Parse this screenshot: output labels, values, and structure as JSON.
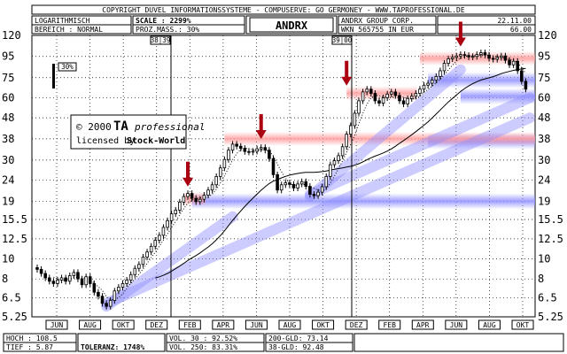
{
  "header": {
    "copyright": "COPYRIGHT  DUVEL INFORMATIONSSYSTEME - COMPUSERVE: GO GERMONEY - WWW.TAPROFESSIONAL.DE",
    "scale_type": "LOGARITHMISCH",
    "range": "BEREICH : NORMAL",
    "scale": "SCALE : 2299%",
    "proz": "PROZ.MASS.: 30%",
    "ticker": "ANDRX",
    "company": "ANDRX GROUP CORP.",
    "wkn": "WKN 565755    IN EUR",
    "date": "22.11.00",
    "last": "66.00"
  },
  "markers": {
    "left": "38|39",
    "right": "39|00",
    "pct_box": "30%"
  },
  "watermark": {
    "line1_prefix": "© 2000",
    "line1_brand": "TA",
    "line1_suffix": "professional",
    "line2_prefix": "licensed by",
    "line2_brand": "Stock-World"
  },
  "footer": {
    "hoch": "HOCH : 108.5",
    "tief": "TIEF : 5.87",
    "toleranz": "TOLERANZ: 1748%",
    "vol30": "VOL. 30  : 92.52%",
    "vol250": "VOL. 250: 83.31%",
    "gld200": "200-GLD: 73.14",
    "gld38": "38-GLD: 92.48"
  },
  "colors": {
    "candle": "#000000",
    "resistance_band": "#ff9a9a",
    "support_band": "#8e8eff",
    "arrow": "#aa0010",
    "background": "#ffffff"
  },
  "chart_data": {
    "type": "candlestick",
    "y_scale": "log",
    "ylim": [
      5.25,
      120
    ],
    "y_ticks": [
      5.25,
      6.5,
      8,
      10,
      12.5,
      15.5,
      19,
      24,
      30,
      38,
      48,
      60,
      75,
      95,
      120
    ],
    "x_ticks": [
      "JUN",
      "AUG",
      "OKT",
      "DEZ",
      "FEB",
      "APR",
      "JUN",
      "AUG",
      "OKT",
      "DEZ",
      "FEB",
      "APR",
      "JUN",
      "AUG",
      "OKT"
    ],
    "x_range_weeks": [
      0,
      121
    ],
    "series": [
      {
        "name": "weekly_close",
        "values": [
          8.9,
          8.5,
          8.1,
          7.8,
          7.6,
          7.9,
          8.1,
          7.8,
          8.3,
          8.6,
          8.0,
          7.5,
          8.2,
          7.6,
          6.9,
          6.6,
          6.1,
          5.9,
          6.3,
          7.0,
          7.3,
          7.6,
          7.9,
          8.4,
          9.0,
          9.4,
          10.2,
          10.8,
          11.5,
          12.3,
          13.0,
          14.2,
          15.3,
          16.5,
          17.2,
          18.8,
          20.0,
          20.7,
          19.6,
          18.9,
          19.4,
          20.3,
          21.5,
          22.8,
          25.0,
          27.5,
          30.2,
          33.5,
          35.8,
          35.0,
          34.2,
          33.0,
          32.8,
          33.1,
          34.0,
          34.5,
          33.5,
          30.5,
          25.5,
          21.5,
          22.8,
          23.3,
          22.9,
          22.0,
          23.0,
          23.6,
          22.4,
          20.5,
          20.2,
          21.0,
          22.3,
          25.0,
          28.5,
          29.8,
          31.5,
          34.8,
          40.0,
          44.0,
          50.5,
          58.0,
          64.0,
          66.0,
          63.0,
          58.0,
          56.5,
          60.0,
          62.5,
          64.0,
          61.5,
          58.0,
          56.0,
          59.5,
          61.0,
          63.0,
          66.0,
          69.0,
          70.5,
          73.0,
          76.0,
          81.0,
          88.0,
          92.5,
          94.0,
          95.5,
          97.0,
          96.0,
          94.5,
          95.0,
          97.0,
          99.0,
          96.5,
          93.0,
          92.0,
          94.0,
          95.5,
          91.0,
          86.5,
          90.0,
          81.0,
          72.0,
          66.0
        ]
      }
    ],
    "resistance_bands": [
      {
        "y": 19.5,
        "from": 36,
        "to": 40
      },
      {
        "y": 38.0,
        "from": 46,
        "to": 121
      },
      {
        "y": 63.0,
        "from": 76,
        "to": 92
      },
      {
        "y": 93.0,
        "from": 94,
        "to": 121
      }
    ],
    "support_bands": [
      {
        "y": 19.0,
        "from": 38,
        "to": 121
      },
      {
        "y": 37.0,
        "from": 96,
        "to": 121
      },
      {
        "y": 73.0,
        "from": 96,
        "to": 121
      },
      {
        "y": 61.0,
        "from": 104,
        "to": 121
      }
    ],
    "support_trendlines": [
      {
        "from_week": 17,
        "from_y": 5.9,
        "to_week": 48,
        "to_y": 16.0
      },
      {
        "from_week": 17,
        "from_y": 6.1,
        "to_week": 121,
        "to_y": 48
      },
      {
        "from_week": 67,
        "from_y": 20.5,
        "to_week": 121,
        "to_y": 60
      },
      {
        "from_week": 67,
        "from_y": 20.0,
        "to_week": 104,
        "to_y": 82
      }
    ],
    "arrows": [
      {
        "week": 37,
        "y": 21.5
      },
      {
        "week": 55,
        "y": 36.5
      },
      {
        "week": 76,
        "y": 66
      },
      {
        "week": 104,
        "y": 102
      }
    ]
  }
}
